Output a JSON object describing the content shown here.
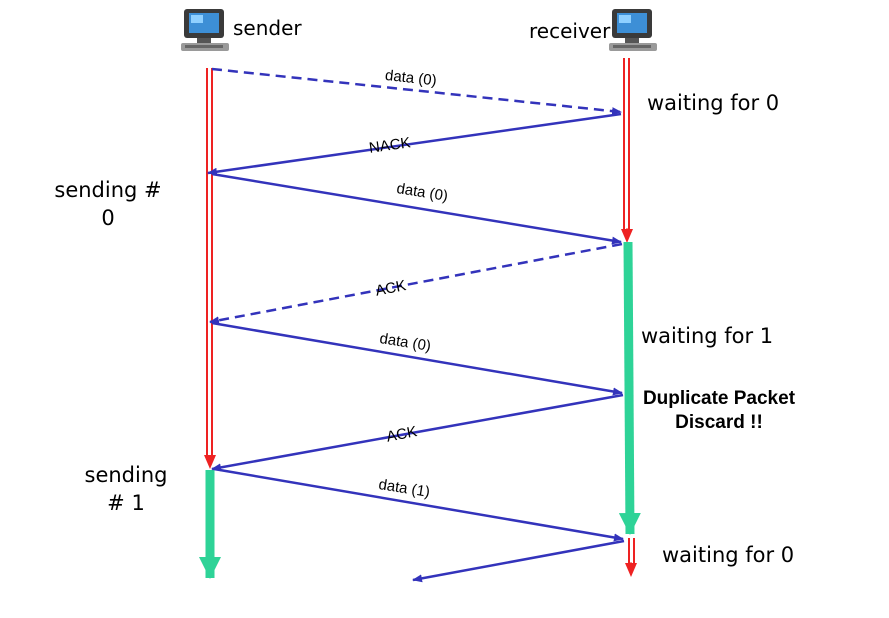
{
  "hosts": {
    "sender": "sender",
    "receiver": "receiver"
  },
  "sender_states": {
    "sending_0": "sending #\n0",
    "sending_1": "sending\n# 1"
  },
  "receiver_states": {
    "waiting_0_top": "waiting for 0",
    "waiting_1": "waiting for 1",
    "waiting_0_bottom": "waiting for 0"
  },
  "duplicate_note": "Duplicate Packet\nDiscard !!",
  "messages": {
    "data0_first": "data (0)",
    "nack": "NACK",
    "data0_second": "data (0)",
    "ack_first": "ACK",
    "data0_third": "data (0)",
    "ack_second": "ACK",
    "data1": "data (1)"
  },
  "colors": {
    "message": "#3333bb",
    "timeline": "#ee2222",
    "active": "#2ed397"
  },
  "icons": {
    "sender": "computer-icon",
    "receiver": "computer-icon"
  }
}
